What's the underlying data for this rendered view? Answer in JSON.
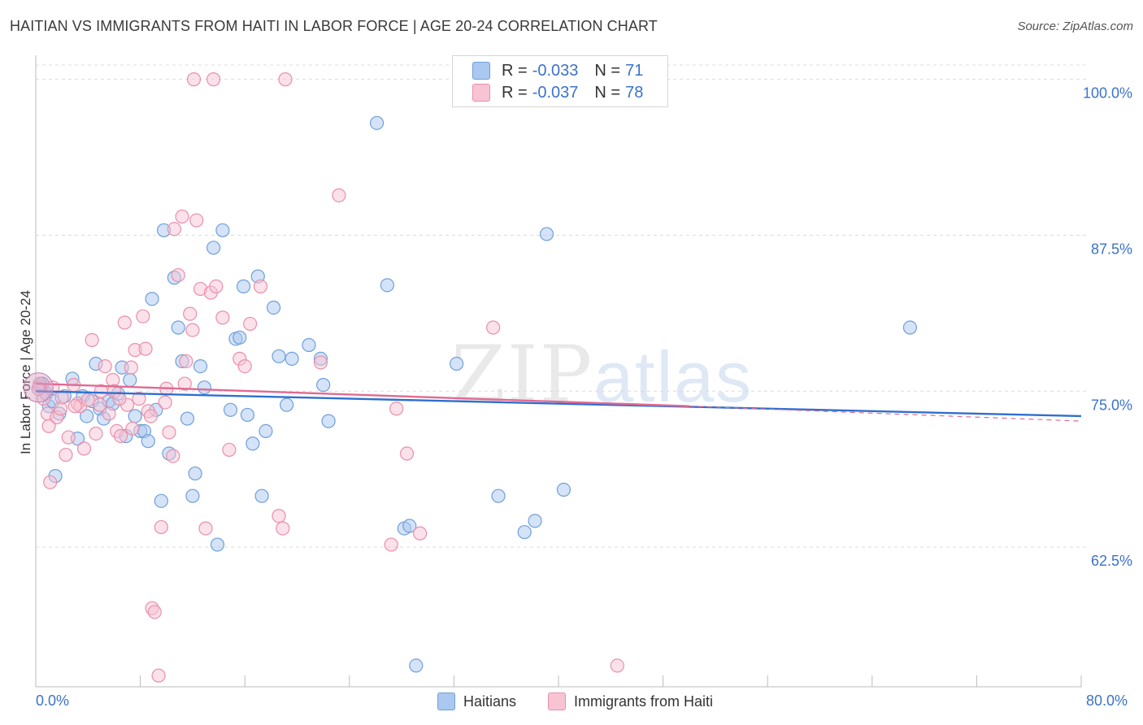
{
  "title": "HAITIAN VS IMMIGRANTS FROM HAITI IN LABOR FORCE | AGE 20-24 CORRELATION CHART",
  "source": "Source: ZipAtlas.com",
  "watermark": {
    "zip": "ZIP",
    "atlas": "atlas"
  },
  "legend": {
    "rows": [
      {
        "r_label": "R =",
        "r_value": "-0.033",
        "n_label": "N =",
        "n_value": "71",
        "color": "#aac8f0",
        "border": "#6f9fdb"
      },
      {
        "r_label": "R =",
        "r_value": "-0.037",
        "n_label": "N =",
        "n_value": "78",
        "color": "#f8c4d4",
        "border": "#e98faa"
      }
    ]
  },
  "bottom_legend": {
    "items": [
      {
        "label": "Haitians",
        "color": "#aac8f0",
        "border": "#6f9fdb"
      },
      {
        "label": "Immigrants from Haiti",
        "color": "#f8c4d4",
        "border": "#e98faa"
      }
    ]
  },
  "chart_data": {
    "type": "scatter",
    "title": "HAITIAN VS IMMIGRANTS FROM HAITI IN LABOR FORCE | AGE 20-24 CORRELATION CHART",
    "xlabel": "",
    "ylabel": "In Labor Force | Age 20-24",
    "xlim": [
      0,
      80
    ],
    "ylim": [
      51.3,
      101.8
    ],
    "x_tick_labels": [
      "0.0%",
      "80.0%"
    ],
    "y_ticks": [
      62.5,
      75.0,
      87.5,
      100.0
    ],
    "y_tick_labels": [
      "62.5%",
      "75.0%",
      "87.5%",
      "100.0%"
    ],
    "grid": true,
    "series": [
      {
        "name": "Haitians",
        "color": "#6f9fdb",
        "fill": "#aac8f0",
        "trend": {
          "x": [
            0,
            80
          ],
          "y": [
            75.0,
            73.0
          ],
          "color": "#2f6fcf"
        },
        "points": [
          [
            0.3,
            75.4
          ],
          [
            0.8,
            74.8
          ],
          [
            1.0,
            73.8
          ],
          [
            1.3,
            74.2
          ],
          [
            1.5,
            68.2
          ],
          [
            1.8,
            73.2
          ],
          [
            2.2,
            74.6
          ],
          [
            2.8,
            76.0
          ],
          [
            3.2,
            71.2
          ],
          [
            3.6,
            74.6
          ],
          [
            3.9,
            73.0
          ],
          [
            4.3,
            74.2
          ],
          [
            4.6,
            77.2
          ],
          [
            4.9,
            73.6
          ],
          [
            5.2,
            72.8
          ],
          [
            5.6,
            74.2
          ],
          [
            5.9,
            74.0
          ],
          [
            6.3,
            74.8
          ],
          [
            6.6,
            76.9
          ],
          [
            6.9,
            71.4
          ],
          [
            7.2,
            75.9
          ],
          [
            7.6,
            73.0
          ],
          [
            8.0,
            71.8
          ],
          [
            8.3,
            71.8
          ],
          [
            8.6,
            71.0
          ],
          [
            8.9,
            82.4
          ],
          [
            9.2,
            73.5
          ],
          [
            9.6,
            66.2
          ],
          [
            9.8,
            87.9
          ],
          [
            10.2,
            70.0
          ],
          [
            10.6,
            84.1
          ],
          [
            10.9,
            80.1
          ],
          [
            11.2,
            77.4
          ],
          [
            11.6,
            72.8
          ],
          [
            12.0,
            66.6
          ],
          [
            12.2,
            68.4
          ],
          [
            12.6,
            77.0
          ],
          [
            12.9,
            75.3
          ],
          [
            13.6,
            86.5
          ],
          [
            13.9,
            62.7
          ],
          [
            14.3,
            87.9
          ],
          [
            14.9,
            73.5
          ],
          [
            15.3,
            79.2
          ],
          [
            15.6,
            79.3
          ],
          [
            15.9,
            83.4
          ],
          [
            16.2,
            73.1
          ],
          [
            16.6,
            70.8
          ],
          [
            17.0,
            84.2
          ],
          [
            17.3,
            66.6
          ],
          [
            17.6,
            71.8
          ],
          [
            18.2,
            81.7
          ],
          [
            18.6,
            77.8
          ],
          [
            19.2,
            73.9
          ],
          [
            19.6,
            77.6
          ],
          [
            20.9,
            78.7
          ],
          [
            21.8,
            77.6
          ],
          [
            22.0,
            75.5
          ],
          [
            22.4,
            72.6
          ],
          [
            26.1,
            96.5
          ],
          [
            26.9,
            83.5
          ],
          [
            28.2,
            64.0
          ],
          [
            28.6,
            64.2
          ],
          [
            29.1,
            53.0
          ],
          [
            32.2,
            77.2
          ],
          [
            35.4,
            66.6
          ],
          [
            37.4,
            63.7
          ],
          [
            38.2,
            64.6
          ],
          [
            39.1,
            87.6
          ],
          [
            40.4,
            67.1
          ],
          [
            66.9,
            80.1
          ],
          [
            0.5,
            75.6
          ]
        ]
      },
      {
        "name": "Immigrants from Haiti",
        "color": "#e98faa",
        "fill": "#f8c4d4",
        "trend": {
          "x": [
            0,
            50
          ],
          "y": [
            75.6,
            73.8
          ],
          "color": "#e06a92",
          "dash_x": [
            50,
            80
          ],
          "dash_y": [
            73.8,
            72.6
          ]
        },
        "points": [
          [
            0.3,
            75.6
          ],
          [
            0.6,
            74.4
          ],
          [
            0.9,
            73.2
          ],
          [
            1.1,
            67.7
          ],
          [
            1.3,
            75.3
          ],
          [
            1.6,
            72.9
          ],
          [
            1.9,
            73.6
          ],
          [
            2.3,
            69.9
          ],
          [
            2.5,
            71.3
          ],
          [
            2.9,
            75.5
          ],
          [
            3.2,
            74.0
          ],
          [
            3.4,
            73.8
          ],
          [
            3.7,
            70.4
          ],
          [
            4.0,
            74.3
          ],
          [
            4.3,
            79.1
          ],
          [
            4.6,
            71.6
          ],
          [
            4.9,
            73.9
          ],
          [
            5.3,
            77.0
          ],
          [
            5.6,
            73.2
          ],
          [
            5.9,
            75.9
          ],
          [
            6.2,
            71.8
          ],
          [
            6.5,
            71.4
          ],
          [
            6.8,
            80.5
          ],
          [
            7.0,
            73.9
          ],
          [
            7.3,
            76.9
          ],
          [
            7.6,
            78.3
          ],
          [
            7.9,
            74.4
          ],
          [
            8.2,
            81.0
          ],
          [
            8.4,
            78.4
          ],
          [
            8.6,
            73.4
          ],
          [
            8.9,
            57.6
          ],
          [
            9.1,
            57.3
          ],
          [
            9.4,
            52.2
          ],
          [
            9.6,
            64.1
          ],
          [
            9.9,
            74.1
          ],
          [
            10.2,
            71.7
          ],
          [
            10.6,
            88.0
          ],
          [
            10.9,
            84.3
          ],
          [
            11.2,
            89.0
          ],
          [
            11.5,
            77.4
          ],
          [
            11.8,
            81.2
          ],
          [
            12.0,
            79.9
          ],
          [
            12.3,
            88.7
          ],
          [
            12.6,
            83.2
          ],
          [
            13.0,
            64.0
          ],
          [
            13.4,
            82.9
          ],
          [
            13.8,
            83.4
          ],
          [
            14.3,
            80.9
          ],
          [
            14.8,
            70.3
          ],
          [
            15.6,
            77.6
          ],
          [
            16.0,
            77.0
          ],
          [
            16.4,
            80.4
          ],
          [
            17.2,
            83.4
          ],
          [
            18.6,
            65.0
          ],
          [
            18.9,
            64.0
          ],
          [
            21.8,
            77.3
          ],
          [
            23.2,
            90.7
          ],
          [
            27.2,
            62.7
          ],
          [
            27.6,
            73.6
          ],
          [
            28.4,
            70.0
          ],
          [
            29.4,
            63.6
          ],
          [
            35.0,
            80.1
          ],
          [
            44.5,
            53.0
          ],
          [
            12.1,
            100.0
          ],
          [
            13.6,
            100.0
          ],
          [
            19.1,
            100.0
          ],
          [
            10.0,
            75.2
          ],
          [
            6.0,
            75.0
          ],
          [
            3.0,
            73.8
          ],
          [
            5.0,
            75.0
          ],
          [
            6.4,
            74.4
          ],
          [
            7.4,
            72.0
          ],
          [
            8.8,
            73.0
          ],
          [
            10.5,
            69.8
          ],
          [
            11.4,
            75.6
          ],
          [
            2.0,
            74.5
          ],
          [
            1.0,
            72.2
          ],
          [
            0.2,
            75.2
          ]
        ]
      }
    ]
  }
}
